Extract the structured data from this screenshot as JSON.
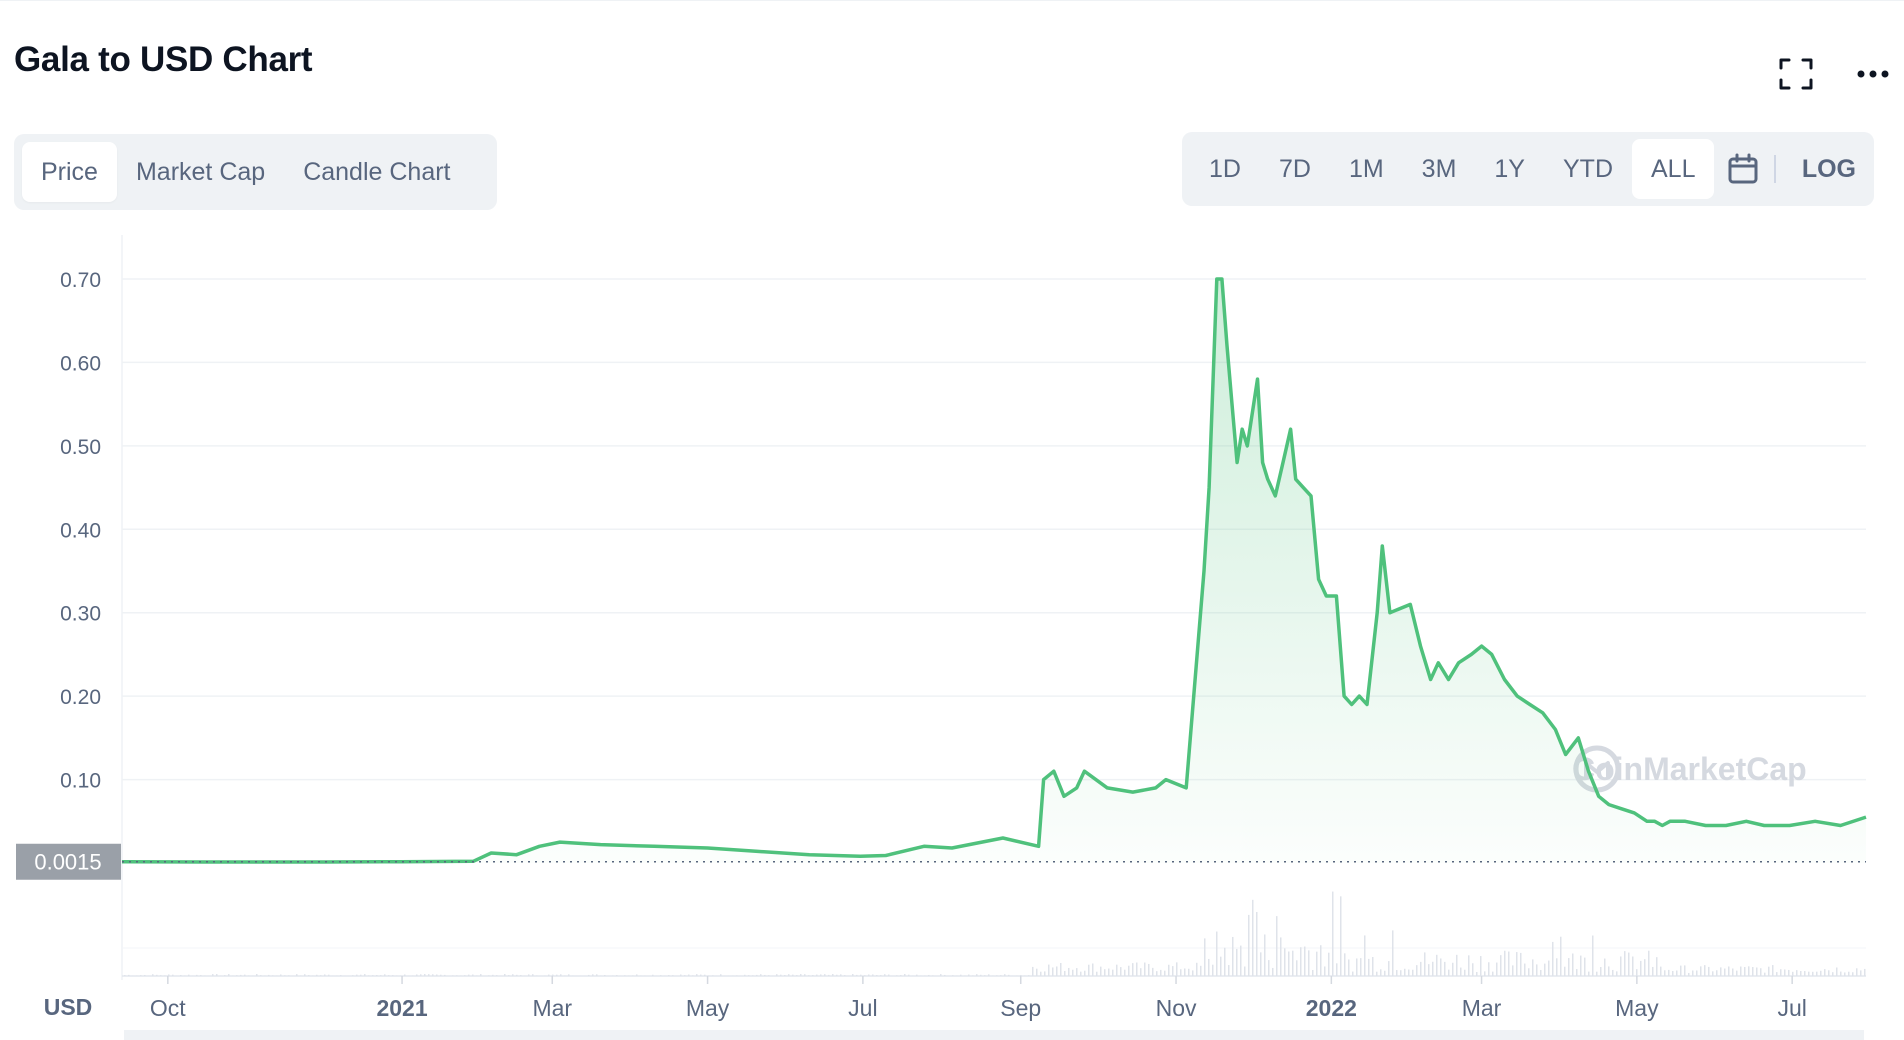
{
  "header": {
    "title": "Gala to USD Chart"
  },
  "icons": {
    "fullscreen": "fullscreen-icon",
    "more": "more-horizontal-icon",
    "calendar": "calendar-icon"
  },
  "tabs": [
    {
      "label": "Price",
      "active": true
    },
    {
      "label": "Market Cap",
      "active": false
    },
    {
      "label": "Candle Chart",
      "active": false
    }
  ],
  "ranges": [
    {
      "label": "1D",
      "active": false
    },
    {
      "label": "7D",
      "active": false
    },
    {
      "label": "1M",
      "active": false
    },
    {
      "label": "3M",
      "active": false
    },
    {
      "label": "1Y",
      "active": false
    },
    {
      "label": "YTD",
      "active": false
    },
    {
      "label": "ALL",
      "active": true
    }
  ],
  "log_label": "LOG",
  "colors": {
    "line": "#4fc17c",
    "grid": "#eff2f5",
    "axis_text": "#58667e",
    "price_tag_bg": "#9aa0a8"
  },
  "watermark": "CoinMarketCap",
  "chart_data": {
    "type": "area",
    "title": "Gala to USD Chart",
    "ylabel": "USD",
    "ylim": [
      0,
      0.7
    ],
    "yticks": [
      0.1,
      0.2,
      0.3,
      0.4,
      0.5,
      0.6,
      0.7
    ],
    "ytick_labels": [
      "0.10",
      "0.20",
      "0.30",
      "0.40",
      "0.50",
      "0.60",
      "0.70"
    ],
    "xlim": [
      "2020-09-13",
      "2022-07-30"
    ],
    "xticks": [
      {
        "date": "2020-10-01",
        "label": "Oct",
        "bold": false
      },
      {
        "date": "2021-01-01",
        "label": "2021",
        "bold": true
      },
      {
        "date": "2021-03-01",
        "label": "Mar",
        "bold": false
      },
      {
        "date": "2021-05-01",
        "label": "May",
        "bold": false
      },
      {
        "date": "2021-07-01",
        "label": "Jul",
        "bold": false
      },
      {
        "date": "2021-09-01",
        "label": "Sep",
        "bold": false
      },
      {
        "date": "2021-11-01",
        "label": "Nov",
        "bold": false
      },
      {
        "date": "2022-01-01",
        "label": "2022",
        "bold": true
      },
      {
        "date": "2022-03-01",
        "label": "Mar",
        "bold": false
      },
      {
        "date": "2022-05-01",
        "label": "May",
        "bold": false
      },
      {
        "date": "2022-07-01",
        "label": "Jul",
        "bold": false
      }
    ],
    "current_price": 0.0015,
    "current_price_label": "0.0015",
    "grid": true,
    "series": [
      {
        "x": [
          "2020-09-13",
          "2020-10-15",
          "2020-12-01",
          "2021-01-01",
          "2021-01-29",
          "2021-02-05",
          "2021-02-15",
          "2021-02-24",
          "2021-03-04",
          "2021-03-20",
          "2021-04-10",
          "2021-05-01",
          "2021-05-20",
          "2021-06-10",
          "2021-06-30",
          "2021-07-10",
          "2021-07-25",
          "2021-08-05",
          "2021-08-25",
          "2021-09-08",
          "2021-09-10",
          "2021-09-14",
          "2021-09-18",
          "2021-09-23",
          "2021-09-26",
          "2021-10-05",
          "2021-10-15",
          "2021-10-24",
          "2021-10-28",
          "2021-11-05",
          "2021-11-12",
          "2021-11-14",
          "2021-11-17",
          "2021-11-19",
          "2021-11-21",
          "2021-11-23",
          "2021-11-25",
          "2021-11-27",
          "2021-11-29",
          "2021-12-03",
          "2021-12-05",
          "2021-12-07",
          "2021-12-10",
          "2021-12-13",
          "2021-12-16",
          "2021-12-18",
          "2021-12-21",
          "2021-12-24",
          "2021-12-27",
          "2021-12-30",
          "2022-01-03",
          "2022-01-06",
          "2022-01-09",
          "2022-01-12",
          "2022-01-15",
          "2022-01-19",
          "2022-01-21",
          "2022-01-24",
          "2022-02-01",
          "2022-02-05",
          "2022-02-09",
          "2022-02-12",
          "2022-02-16",
          "2022-02-20",
          "2022-02-25",
          "2022-03-01",
          "2022-03-05",
          "2022-03-10",
          "2022-03-15",
          "2022-03-20",
          "2022-03-25",
          "2022-03-30",
          "2022-04-03",
          "2022-04-08",
          "2022-04-12",
          "2022-04-16",
          "2022-04-20",
          "2022-04-25",
          "2022-04-30",
          "2022-05-05",
          "2022-05-08",
          "2022-05-11",
          "2022-05-14",
          "2022-05-20",
          "2022-05-28",
          "2022-06-05",
          "2022-06-13",
          "2022-06-20",
          "2022-06-30",
          "2022-07-10",
          "2022-07-20",
          "2022-07-30"
        ],
        "y": [
          0.0015,
          0.0012,
          0.0012,
          0.0015,
          0.002,
          0.012,
          0.01,
          0.02,
          0.025,
          0.022,
          0.02,
          0.018,
          0.014,
          0.01,
          0.008,
          0.009,
          0.02,
          0.018,
          0.03,
          0.02,
          0.1,
          0.11,
          0.08,
          0.09,
          0.11,
          0.09,
          0.085,
          0.09,
          0.1,
          0.09,
          0.35,
          0.45,
          0.7,
          0.7,
          0.62,
          0.55,
          0.48,
          0.52,
          0.5,
          0.58,
          0.48,
          0.46,
          0.44,
          0.48,
          0.52,
          0.46,
          0.45,
          0.44,
          0.34,
          0.32,
          0.32,
          0.2,
          0.19,
          0.2,
          0.19,
          0.3,
          0.38,
          0.3,
          0.31,
          0.26,
          0.22,
          0.24,
          0.22,
          0.24,
          0.25,
          0.26,
          0.25,
          0.22,
          0.2,
          0.19,
          0.18,
          0.16,
          0.13,
          0.15,
          0.11,
          0.08,
          0.07,
          0.065,
          0.06,
          0.05,
          0.05,
          0.045,
          0.05,
          0.05,
          0.045,
          0.045,
          0.05,
          0.045,
          0.045,
          0.05,
          0.045,
          0.055
        ]
      }
    ]
  }
}
